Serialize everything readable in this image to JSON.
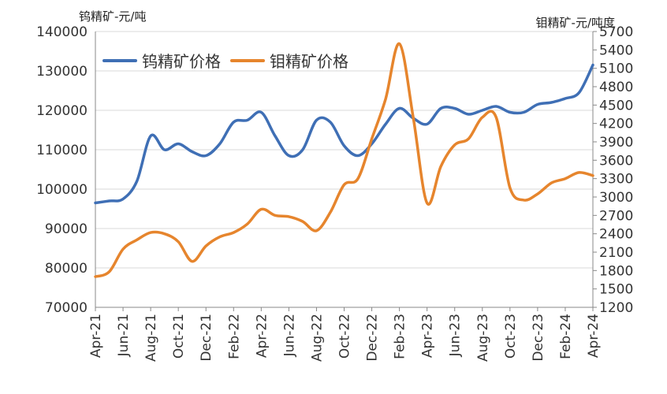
{
  "chart_data": {
    "type": "line",
    "y_left_label": "钨精矿-元/吨",
    "y_right_label": "钼精矿-元/吨度",
    "ylim_left": [
      70000,
      140000
    ],
    "yticks_left": [
      70000,
      80000,
      90000,
      100000,
      110000,
      120000,
      130000,
      140000
    ],
    "ylim_right": [
      1200,
      5700
    ],
    "yticks_right": [
      1200,
      1500,
      1800,
      2100,
      2400,
      2700,
      3000,
      3300,
      3600,
      3900,
      4200,
      4500,
      4800,
      5100,
      5400,
      5700
    ],
    "x_tick_labels": [
      "Apr-21",
      "Jun-21",
      "Aug-21",
      "Oct-21",
      "Dec-21",
      "Feb-22",
      "Apr-22",
      "Jun-22",
      "Aug-22",
      "Oct-22",
      "Dec-22",
      "Feb-23",
      "Apr-23",
      "Jun-23",
      "Aug-23",
      "Oct-23",
      "Dec-23",
      "Feb-24",
      "Apr-24"
    ],
    "x_months": [
      "2021-04",
      "2021-05",
      "2021-06",
      "2021-07",
      "2021-08",
      "2021-09",
      "2021-10",
      "2021-11",
      "2021-12",
      "2022-01",
      "2022-02",
      "2022-03",
      "2022-04",
      "2022-05",
      "2022-06",
      "2022-07",
      "2022-08",
      "2022-09",
      "2022-10",
      "2022-11",
      "2022-12",
      "2023-01",
      "2023-02",
      "2023-03",
      "2023-04",
      "2023-05",
      "2023-06",
      "2023-07",
      "2023-08",
      "2023-09",
      "2023-10",
      "2023-11",
      "2023-12",
      "2024-01",
      "2024-02",
      "2024-03",
      "2024-04"
    ],
    "legend_position": "top-left",
    "grid": true,
    "series": [
      {
        "name": "钨精矿价格",
        "axis": "left",
        "color": "#3f6fb5",
        "values": [
          96500,
          97000,
          97500,
          102000,
          113500,
          110000,
          111500,
          109500,
          108500,
          111500,
          117000,
          117500,
          119500,
          113500,
          108500,
          110000,
          117500,
          117000,
          111000,
          108500,
          111500,
          116500,
          120500,
          118000,
          116500,
          120500,
          120500,
          119000,
          120000,
          121000,
          119500,
          119500,
          121500,
          122000,
          123000,
          124500,
          131500
        ]
      },
      {
        "name": "钼精矿价格",
        "axis": "right",
        "color": "#e6852d",
        "values": [
          1700,
          1780,
          2150,
          2300,
          2420,
          2400,
          2270,
          1950,
          2200,
          2350,
          2420,
          2560,
          2800,
          2700,
          2680,
          2600,
          2450,
          2750,
          3200,
          3300,
          3950,
          4600,
          5500,
          4300,
          2900,
          3500,
          3850,
          3950,
          4300,
          4300,
          3150,
          2950,
          3050,
          3230,
          3300,
          3400,
          3350
        ]
      }
    ]
  }
}
